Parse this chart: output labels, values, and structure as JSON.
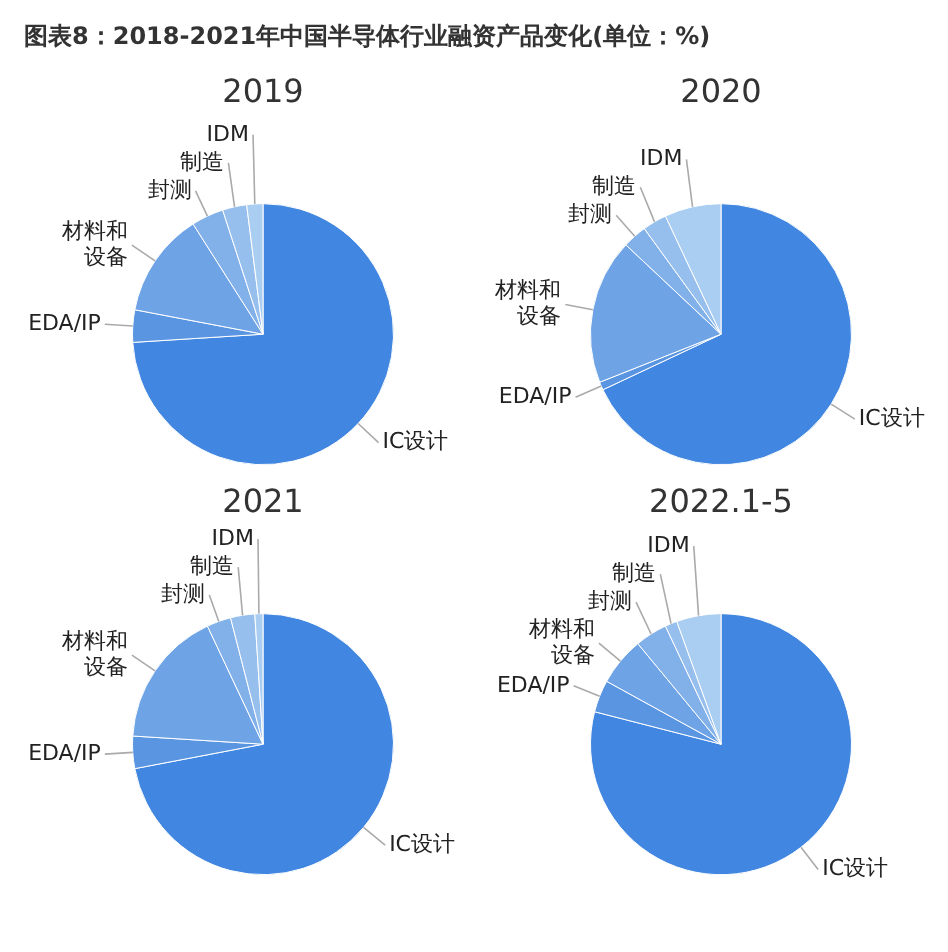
{
  "chart_data": [
    {
      "type": "pie",
      "title": "图表8：2018-2021年中国半导体行业融资产品变化(单位：%)",
      "subtitle": "2019",
      "categories": [
        "IC设计",
        "EDA/IP",
        "材料和设备",
        "封测",
        "制造",
        "IDM"
      ],
      "values": [
        74,
        4,
        13,
        4,
        3,
        2
      ],
      "colors": [
        "#4186e0",
        "#5a95e2",
        "#6ea3e6",
        "#82b1ea",
        "#96bfee",
        "#aacdf2"
      ]
    },
    {
      "type": "pie",
      "subtitle": "2020",
      "categories": [
        "IC设计",
        "EDA/IP",
        "材料和设备",
        "封测",
        "制造",
        "IDM"
      ],
      "values": [
        68,
        1,
        18,
        3,
        3,
        7
      ],
      "colors": [
        "#4186e0",
        "#5a95e2",
        "#6ea3e6",
        "#82b1ea",
        "#96bfee",
        "#aacdf2"
      ]
    },
    {
      "type": "pie",
      "subtitle": "2021",
      "categories": [
        "IC设计",
        "EDA/IP",
        "材料和设备",
        "封测",
        "制造",
        "IDM"
      ],
      "values": [
        72,
        4,
        17,
        3,
        3,
        1
      ],
      "colors": [
        "#4186e0",
        "#5a95e2",
        "#6ea3e6",
        "#82b1ea",
        "#96bfee",
        "#aacdf2"
      ]
    },
    {
      "type": "pie",
      "subtitle": "2022.1-5",
      "categories": [
        "IC设计",
        "EDA/IP",
        "材料和设备",
        "封测",
        "制造",
        "IDM"
      ],
      "values": [
        79,
        4,
        6,
        4,
        1.5,
        5.5
      ],
      "colors": [
        "#4186e0",
        "#5a95e2",
        "#6ea3e6",
        "#82b1ea",
        "#96bfee",
        "#aacdf2"
      ]
    }
  ]
}
